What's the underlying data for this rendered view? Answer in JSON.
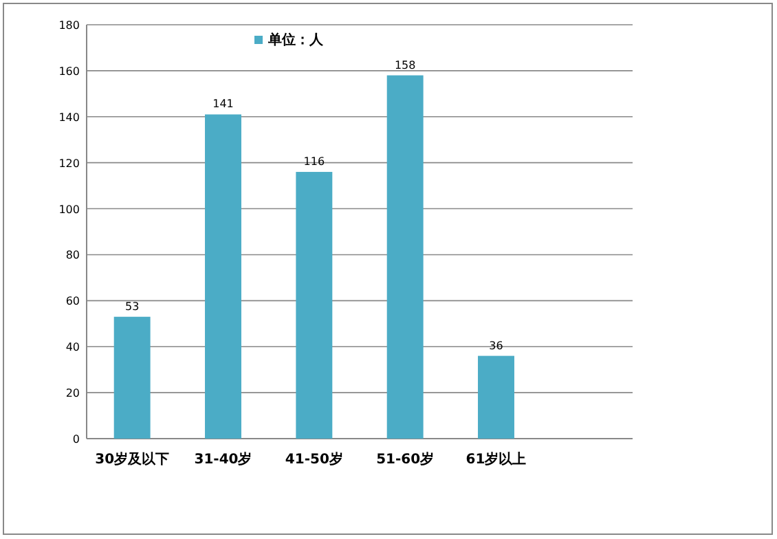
{
  "chart_data": {
    "type": "bar",
    "categories": [
      "30岁及以下",
      "31-40岁",
      "41-50岁",
      "51-60岁",
      "61岁以上",
      null
    ],
    "series": [
      {
        "name": "单位：人",
        "color": "#4bacc6",
        "values": [
          53,
          141,
          116,
          158,
          36,
          null
        ]
      }
    ],
    "ylim": [
      0,
      180
    ],
    "yticks": [
      0,
      20,
      40,
      60,
      80,
      100,
      120,
      140,
      160,
      180
    ],
    "grid": "y",
    "legend": "top",
    "data_labels": true
  }
}
